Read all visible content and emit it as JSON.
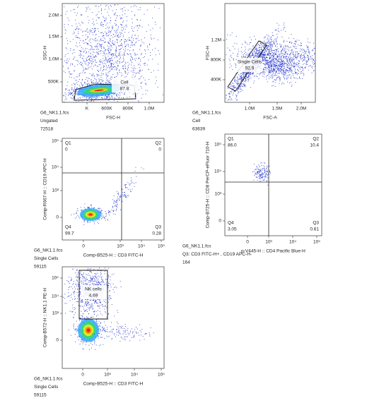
{
  "plots": [
    {
      "y_label": "SSC-H",
      "x_label": "FSC-H",
      "y_ticks": [
        "2.0M",
        "1.5M",
        "1.0M",
        "500K"
      ],
      "x_ticks": [
        "K",
        "600K",
        "800K",
        "1.0M"
      ],
      "gates": [
        {
          "name": "Cell",
          "percent": "87.8"
        }
      ],
      "info": [
        "G6_NK1.1.fcs",
        "Ungated",
        "72518"
      ]
    },
    {
      "y_label": "FSC-H",
      "x_label": "FSC-A",
      "y_ticks": [
        "1.2M",
        "800K",
        "400K"
      ],
      "x_ticks": [
        "1.0M",
        "1.5M",
        "2.0M"
      ],
      "gates": [
        {
          "name": "Single Cells",
          "percent": "92.9"
        }
      ],
      "info": [
        "G6_NK1.1.fcs",
        "Cell",
        "63639"
      ]
    },
    {
      "y_label": "Comp-R667-H :: CD19 APC-H",
      "x_label": "Comp-B525-H :: CD3 FITC-H",
      "y_ticks": [
        "10⁵",
        "10⁴",
        "10³",
        "0"
      ],
      "x_ticks": [
        "0",
        "10³",
        "10⁴",
        "10⁵"
      ],
      "quadrants": [
        {
          "name": "Q1",
          "percent": "0"
        },
        {
          "name": "Q2",
          "percent": "0"
        },
        {
          "name": "Q3",
          "percent": "0.28"
        },
        {
          "name": "Q4",
          "percent": "99.7"
        }
      ],
      "info": [
        "G6_NK1.1.fcs",
        "Single Cells",
        "59115"
      ]
    },
    {
      "y_label": "Comp-B725-H :: CD8 PerCP-eFluor 710-H",
      "x_label": "p-V445-H :: CD4 Pacific Blue-H",
      "y_ticks": [
        "10⁵",
        "10⁴",
        "10³",
        "0"
      ],
      "x_ticks": [
        "0",
        "10³",
        "10⁴",
        "10⁵"
      ],
      "quadrants": [
        {
          "name": "Q1",
          "percent": "86.0"
        },
        {
          "name": "Q2",
          "percent": "10.4"
        },
        {
          "name": "Q3",
          "percent": "0.61"
        },
        {
          "name": "Q4",
          "percent": "3.05"
        }
      ],
      "info": [
        "G6_NK1.1.fcs",
        "Q3: CD3 FITC-H+ , CD19 APC-H-",
        "164"
      ]
    },
    {
      "y_label": "Comp-B572-H :: NK1.1 PE-H",
      "x_label": "Comp-B525-H :: CD3 FITC-H",
      "y_ticks": [
        "10⁵",
        "10⁴",
        "10³",
        "0"
      ],
      "x_ticks": [
        "0",
        "10³",
        "10⁴",
        "10⁵"
      ],
      "gates": [
        {
          "name": "NK cells",
          "percent": "4.69"
        }
      ],
      "info": [
        "G6_NK1.1.fcs",
        "Single Cells",
        "59115"
      ]
    }
  ]
}
